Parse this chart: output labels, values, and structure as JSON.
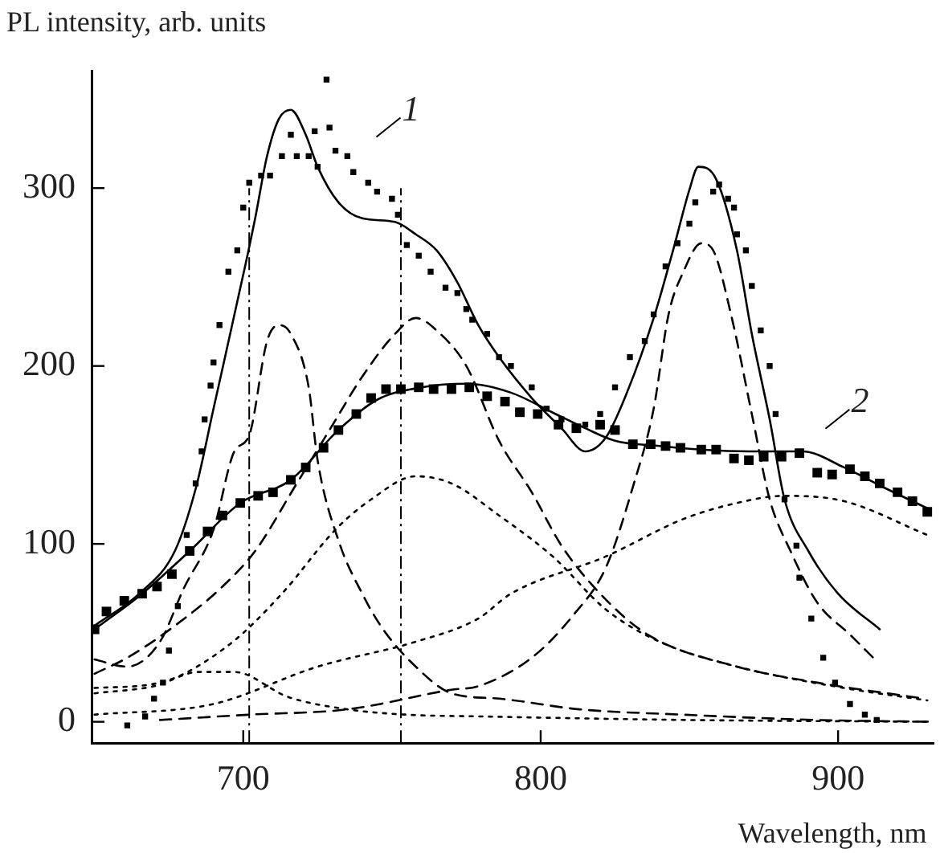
{
  "chart_data": {
    "type": "line",
    "xlabel": "Wavelength, nm",
    "ylabel": "PL intensity, arb. units",
    "xlim": [
      649,
      932
    ],
    "ylim": [
      -12,
      366
    ],
    "xticks": [
      700,
      800,
      900
    ],
    "yticks": [
      0,
      100,
      200,
      300
    ],
    "grid": false,
    "legend": false,
    "annotations": [
      {
        "text": "1",
        "x": 748,
        "y": 336
      },
      {
        "text": "2",
        "x": 899,
        "y": 172
      }
    ],
    "ref_lines": [
      {
        "axis": "x",
        "value": 702,
        "line_style": "dashed",
        "color": "#000000"
      },
      {
        "axis": "x",
        "value": 753,
        "line_style": "dashed",
        "color": "#000000"
      }
    ],
    "series": [
      {
        "type": "scatter",
        "marker": "square",
        "color": "#000000",
        "x": [
          661,
          667,
          670,
          673,
          675,
          678,
          681,
          684,
          686,
          687,
          689,
          690,
          692,
          695,
          698,
          700,
          702,
          706,
          709,
          713,
          716,
          718,
          722,
          724,
          725,
          728,
          729,
          731,
          735,
          737,
          742,
          745,
          750,
          752,
          755,
          759,
          763,
          768,
          772,
          775,
          777,
          782,
          786,
          790,
          797,
          802,
          807,
          815,
          820,
          825,
          830,
          835,
          838,
          842,
          846,
          850,
          852,
          858,
          860,
          863,
          865,
          866,
          869,
          871,
          874,
          877,
          879,
          882,
          886,
          887,
          891,
          895,
          899,
          904,
          909,
          913
        ],
        "values": [
          -2,
          3,
          13,
          22,
          40,
          65,
          105,
          134,
          152,
          170,
          189,
          202,
          223,
          253,
          265,
          289,
          303,
          307,
          307,
          318,
          330,
          318,
          318,
          332,
          312,
          361,
          334,
          321,
          318,
          309,
          303,
          298,
          294,
          285,
          268,
          262,
          253,
          244,
          241,
          232,
          226,
          218,
          205,
          200,
          188,
          176,
          170,
          167,
          173,
          188,
          205,
          214,
          229,
          256,
          269,
          280,
          292,
          298,
          302,
          294,
          289,
          274,
          265,
          245,
          220,
          200,
          173,
          125,
          99,
          81,
          58,
          36,
          22,
          10,
          4,
          1
        ]
      },
      {
        "type": "scatter",
        "marker": "square",
        "color": "#000000",
        "x": [
          650,
          654,
          660,
          666,
          671,
          676,
          682,
          688,
          693,
          699,
          705,
          710,
          716,
          721,
          727,
          732,
          738,
          743,
          748,
          753,
          759,
          764,
          770,
          776,
          782,
          788,
          793,
          799,
          806,
          812,
          820,
          825,
          831,
          837,
          842,
          847,
          854,
          859,
          865,
          870,
          875,
          881,
          887,
          893,
          898,
          904,
          909,
          914,
          920,
          925,
          930
        ],
        "values": [
          52,
          62,
          68,
          72,
          76,
          83,
          96,
          107,
          116,
          123,
          127,
          129,
          136,
          143,
          154,
          164,
          173,
          182,
          187,
          187,
          188,
          187,
          187,
          188,
          183,
          180,
          174,
          173,
          167,
          165,
          167,
          164,
          156,
          156,
          155,
          154,
          153,
          153,
          148,
          147,
          149,
          149,
          151,
          140,
          139,
          142,
          138,
          134,
          129,
          124,
          118
        ]
      },
      {
        "marker": "none",
        "line_style": "solid",
        "color": "#000000",
        "x": [
          650,
          665,
          677,
          684,
          690,
          701,
          704,
          708,
          712,
          716,
          721,
          725,
          732,
          740,
          751,
          758,
          765,
          772,
          779,
          786,
          797,
          807,
          815,
          822,
          829,
          838,
          845,
          850,
          853,
          859,
          866,
          871,
          877,
          882,
          890,
          900,
          914
        ],
        "values": [
          54,
          72,
          96,
          131,
          176,
          259,
          283,
          318,
          339,
          344,
          330,
          312,
          292,
          283,
          281,
          274,
          265,
          247,
          223,
          205,
          182,
          165,
          152,
          160,
          185,
          227,
          268,
          299,
          312,
          305,
          265,
          218,
          170,
          125,
          96,
          72,
          52
        ]
      },
      {
        "marker": "none",
        "line_style": "solid",
        "color": "#000000",
        "x": [
          650,
          666,
          682,
          699,
          716,
          732,
          745,
          760,
          775,
          790,
          805,
          815,
          825,
          840,
          854,
          870,
          888,
          902,
          915,
          930
        ],
        "values": [
          52,
          72,
          96,
          123,
          136,
          164,
          181,
          188,
          190,
          185,
          173,
          165,
          158,
          155,
          153,
          152,
          152,
          143,
          132,
          120
        ]
      },
      {
        "marker": "none",
        "line_style": "dashed",
        "color": "#000000",
        "x": [
          650,
          661,
          672,
          680,
          690,
          697,
          702,
          708,
          712,
          716,
          722,
          725,
          732,
          740,
          747,
          758,
          770,
          786,
          813,
          848,
          893,
          932
        ],
        "values": [
          35,
          31,
          45,
          75,
          108,
          152,
          161,
          214,
          223,
          218,
          188,
          147,
          102,
          72,
          52,
          31,
          16,
          13,
          7,
          4,
          1,
          0
        ]
      },
      {
        "marker": "none",
        "line_style": "dashed",
        "color": "#000000",
        "x": [
          650,
          661,
          677,
          693,
          704,
          718,
          729,
          740,
          751,
          758,
          765,
          775,
          786,
          797,
          807,
          820,
          836,
          866,
          893,
          929
        ],
        "values": [
          27,
          36,
          54,
          76,
          96,
          134,
          164,
          194,
          218,
          227,
          220,
          200,
          158,
          129,
          99,
          72,
          49,
          31,
          22,
          13
        ]
      },
      {
        "marker": "none",
        "line_style": "dashed",
        "color": "#000000",
        "x": [
          672,
          702,
          735,
          770,
          779,
          797,
          811,
          822,
          831,
          838,
          843,
          848,
          854,
          858,
          864,
          871,
          877,
          884,
          893,
          904,
          913
        ],
        "values": [
          1,
          4,
          7,
          18,
          20,
          36,
          60,
          87,
          132,
          176,
          229,
          253,
          269,
          265,
          229,
          173,
          125,
          96,
          67,
          49,
          34
        ]
      },
      {
        "marker": "none",
        "line_style": "dotted",
        "color": "#000000",
        "x": [
          650,
          672,
          695,
          713,
          731,
          743,
          758,
          770,
          786,
          804,
          822,
          840,
          866,
          902,
          930
        ],
        "values": [
          19,
          22,
          43,
          72,
          108,
          125,
          138,
          134,
          116,
          93,
          63,
          45,
          31,
          19,
          12
        ]
      },
      {
        "marker": "none",
        "line_style": "dotted",
        "color": "#000000",
        "x": [
          650,
          690,
          725,
          758,
          779,
          790,
          822,
          848,
          866,
          882,
          902,
          930
        ],
        "values": [
          4,
          10,
          31,
          45,
          58,
          72,
          93,
          114,
          123,
          127,
          124,
          105
        ]
      },
      {
        "marker": "none",
        "line_style": "dotted",
        "color": "#000000",
        "x": [
          650,
          670,
          685,
          697,
          715,
          735,
          755,
          780,
          850,
          930
        ],
        "values": [
          16,
          20,
          28,
          28,
          14,
          7,
          4,
          3,
          1,
          0
        ]
      }
    ]
  }
}
